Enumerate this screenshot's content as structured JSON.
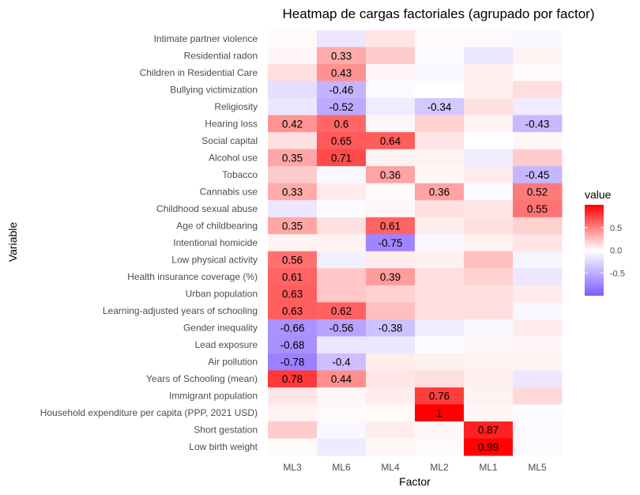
{
  "chart_data": {
    "type": "heatmap",
    "title": "Heatmap de cargas factoriales (agrupado por factor)",
    "xlabel": "Factor",
    "ylabel": "Variable",
    "factors": [
      "ML3",
      "ML6",
      "ML4",
      "ML2",
      "ML1",
      "ML5"
    ],
    "variables": [
      "Intimate partner violence",
      "Residential radon",
      "Children in Residential Care",
      "Bullying victimization",
      "Religiosity",
      "Hearing loss",
      "Social capital",
      "Alcohol use",
      "Tobacco",
      "Cannabis use",
      "Childhood sexual abuse",
      "Age of childbearing",
      "Intentional homicide",
      "Low physical activity",
      "Health insurance coverage (%)",
      "Urban population",
      "Learning-adjusted years of schooling",
      "Gender inequality",
      "Lead exposure",
      "Air pollution",
      "Years of Schooling (mean)",
      "Immigrant population",
      "Household expenditure per capita (PPP, 2021 USD)",
      "Short gestation",
      "Low birth weight"
    ],
    "values": [
      [
        0.02,
        -0.15,
        0.1,
        0.02,
        0.02,
        -0.05
      ],
      [
        0.03,
        0.33,
        0.2,
        -0.03,
        -0.15,
        0.05
      ],
      [
        0.13,
        0.43,
        0.03,
        -0.05,
        0.06,
        0.02
      ],
      [
        -0.2,
        -0.46,
        -0.03,
        0.0,
        0.06,
        0.13
      ],
      [
        -0.15,
        -0.52,
        -0.12,
        -0.34,
        0.12,
        -0.12
      ],
      [
        0.42,
        0.6,
        0.03,
        0.18,
        0.05,
        -0.43
      ],
      [
        0.12,
        0.65,
        0.64,
        0.1,
        0.0,
        0.03
      ],
      [
        0.35,
        0.71,
        0.05,
        0.05,
        -0.12,
        0.2
      ],
      [
        0.2,
        -0.05,
        0.36,
        0.03,
        0.08,
        -0.45
      ],
      [
        0.33,
        0.08,
        0.02,
        0.36,
        -0.03,
        0.52
      ],
      [
        -0.15,
        -0.02,
        0.03,
        0.12,
        0.1,
        0.55
      ],
      [
        0.35,
        0.12,
        0.61,
        0.07,
        0.12,
        0.18
      ],
      [
        0.05,
        0.05,
        -0.75,
        -0.05,
        0.05,
        0.1
      ],
      [
        0.56,
        -0.1,
        0.07,
        0.06,
        0.25,
        -0.07
      ],
      [
        0.61,
        0.22,
        0.39,
        0.13,
        0.18,
        -0.15
      ],
      [
        0.63,
        0.22,
        0.18,
        0.13,
        0.12,
        0.08
      ],
      [
        0.63,
        0.62,
        0.25,
        0.13,
        0.13,
        -0.05
      ],
      [
        -0.66,
        -0.56,
        -0.38,
        -0.12,
        -0.05,
        0.08
      ],
      [
        -0.68,
        -0.15,
        -0.15,
        -0.02,
        0.03,
        0.03
      ],
      [
        -0.78,
        -0.4,
        0.07,
        0.06,
        0.05,
        0.05
      ],
      [
        0.78,
        0.44,
        0.1,
        0.13,
        0.06,
        -0.15
      ],
      [
        0.1,
        0.03,
        0.07,
        0.76,
        0.05,
        0.15
      ],
      [
        0.05,
        0.02,
        0.02,
        1.0,
        0.03,
        -0.02
      ],
      [
        0.2,
        -0.05,
        0.07,
        0.03,
        0.87,
        -0.03
      ],
      [
        0.02,
        -0.13,
        0.03,
        0.02,
        0.99,
        -0.03
      ]
    ],
    "labels": [
      [
        "",
        "",
        "",
        "",
        "",
        ""
      ],
      [
        "",
        "0.33",
        "",
        "",
        "",
        ""
      ],
      [
        "",
        "0.43",
        "",
        "",
        "",
        ""
      ],
      [
        "",
        "-0.46",
        "",
        "",
        "",
        ""
      ],
      [
        "",
        "-0.52",
        "",
        "-0.34",
        "",
        ""
      ],
      [
        "0.42",
        "0.6",
        "",
        "",
        "",
        "-0.43"
      ],
      [
        "",
        "0.65",
        "0.64",
        "",
        "",
        ""
      ],
      [
        "0.35",
        "0.71",
        "",
        "",
        "",
        ""
      ],
      [
        "",
        "",
        "0.36",
        "",
        "",
        "-0.45"
      ],
      [
        "0.33",
        "",
        "",
        "0.36",
        "",
        "0.52"
      ],
      [
        "",
        "",
        "",
        "",
        "",
        "0.55"
      ],
      [
        "0.35",
        "",
        "0.61",
        "",
        "",
        ""
      ],
      [
        "",
        "",
        "-0.75",
        "",
        "",
        ""
      ],
      [
        "0.56",
        "",
        "",
        "",
        "",
        ""
      ],
      [
        "0.61",
        "",
        "0.39",
        "",
        "",
        ""
      ],
      [
        "0.63",
        "",
        "",
        "",
        "",
        ""
      ],
      [
        "0.63",
        "0.62",
        "",
        "",
        "",
        ""
      ],
      [
        "-0.66",
        "-0.56",
        "-0.38",
        "",
        "",
        ""
      ],
      [
        "-0.68",
        "",
        "",
        "",
        "",
        ""
      ],
      [
        "-0.78",
        "-0.4",
        "",
        "",
        "",
        ""
      ],
      [
        "0.78",
        "0.44",
        "",
        "",
        "",
        ""
      ],
      [
        "",
        "",
        "",
        "0.76",
        "",
        ""
      ],
      [
        "",
        "",
        "",
        "1",
        "",
        ""
      ],
      [
        "",
        "",
        "",
        "",
        "0.87",
        ""
      ],
      [
        "",
        "",
        "",
        "",
        "0.99",
        ""
      ]
    ],
    "color_scale": {
      "low": "#7f5cff",
      "mid": "#ffffff",
      "high": "#ff0000",
      "range": [
        -1,
        1
      ]
    },
    "legend": {
      "title": "value",
      "ticks": [
        0.5,
        0.0,
        -0.5
      ],
      "tick_labels": [
        "0.5",
        "0.0",
        "-0.5"
      ],
      "placement": "right"
    }
  }
}
